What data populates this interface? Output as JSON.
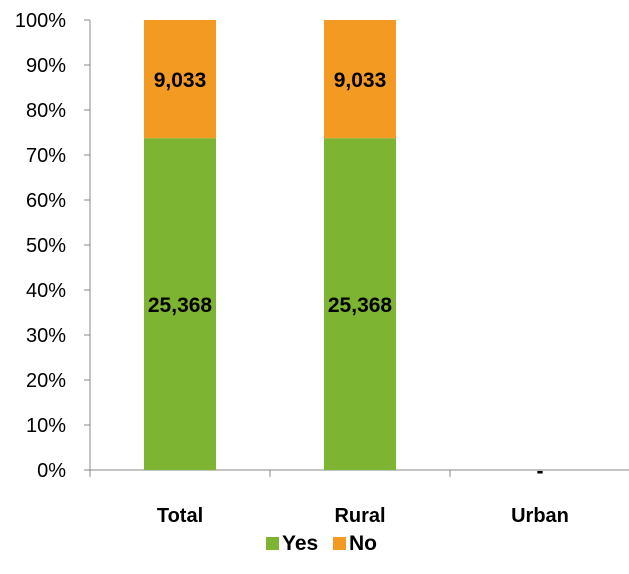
{
  "chart_data": {
    "type": "bar",
    "stacked": true,
    "normalized": true,
    "categories": [
      "Total",
      "Rural",
      "Urban"
    ],
    "series": [
      {
        "name": "Yes",
        "color": "#7DB432",
        "values": [
          25368,
          25368,
          0
        ],
        "labels": [
          "25,368",
          "25,368",
          ""
        ]
      },
      {
        "name": "No",
        "color": "#F39A22",
        "values": [
          9033,
          9033,
          0
        ],
        "labels": [
          "9,033",
          "9,033",
          ""
        ]
      }
    ],
    "empty_category_labels": [
      "",
      "",
      "-"
    ],
    "yticks": [
      "0%",
      "10%",
      "20%",
      "30%",
      "40%",
      "50%",
      "60%",
      "70%",
      "80%",
      "90%",
      "100%"
    ],
    "ylim": [
      0,
      100
    ],
    "legend_position": "bottom",
    "grid": false
  }
}
